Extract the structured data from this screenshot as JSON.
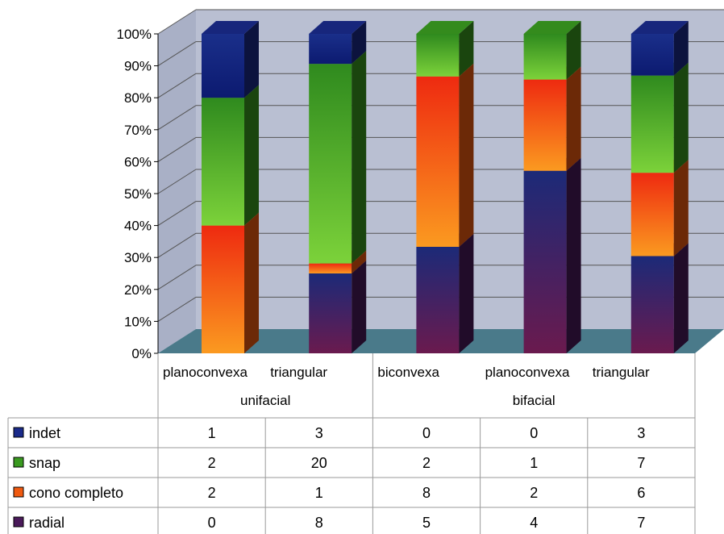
{
  "chart_data": {
    "type": "bar",
    "stacked": "percent",
    "three_d": true,
    "ylim": [
      0,
      100
    ],
    "y_ticks": [
      "0%",
      "10%",
      "20%",
      "30%",
      "40%",
      "50%",
      "60%",
      "70%",
      "80%",
      "90%",
      "100%"
    ],
    "categories": [
      "planoconvexa",
      "triangular",
      "biconvexa",
      "planoconvexa",
      "triangular"
    ],
    "groups": [
      {
        "label": "unifacial",
        "span": 2
      },
      {
        "label": "bifacial",
        "span": 3
      }
    ],
    "series": [
      {
        "name": "radial",
        "color": "#4a1a5a",
        "values": [
          0,
          8,
          5,
          4,
          7
        ]
      },
      {
        "name": "cono completo",
        "color": "#f05a10",
        "values": [
          2,
          1,
          8,
          2,
          6
        ]
      },
      {
        "name": "snap",
        "color": "#3a9a20",
        "values": [
          2,
          20,
          2,
          1,
          7
        ]
      },
      {
        "name": "indet",
        "color": "#1a2a8a",
        "values": [
          1,
          3,
          0,
          0,
          3
        ]
      }
    ],
    "table_row_order": [
      "indet",
      "snap",
      "cono completo",
      "radial"
    ],
    "legend_placement": "data-table",
    "grid": true,
    "wall_color": "#b9bfd2",
    "floor_color": "#4a7a8a"
  }
}
